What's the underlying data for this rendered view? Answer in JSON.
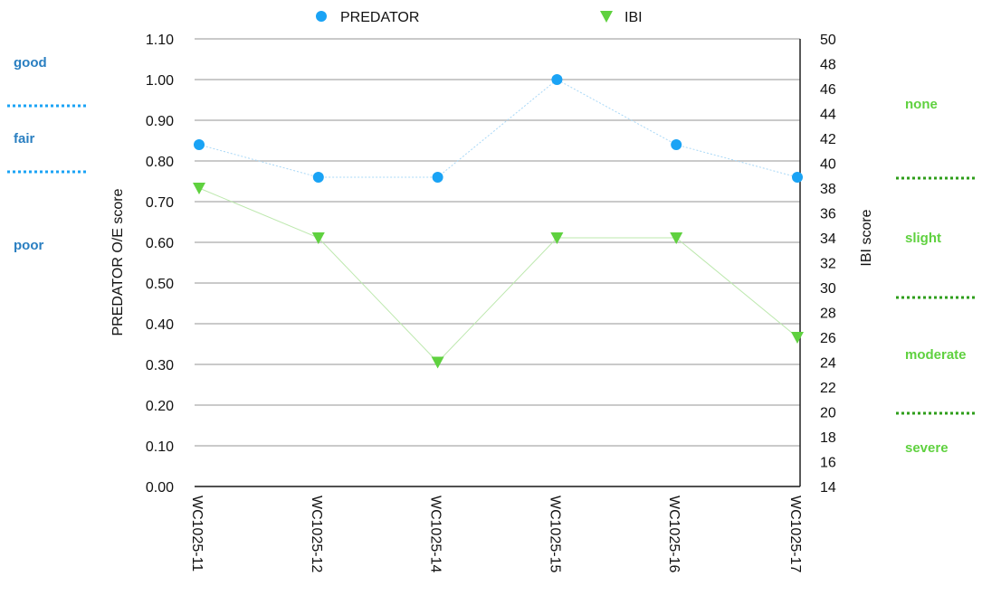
{
  "chart_data": {
    "type": "line",
    "categories": [
      "WC1025-11",
      "WC1025-12",
      "WC1025-14",
      "WC1025-15",
      "WC1025-16",
      "WC1025-17"
    ],
    "series": [
      {
        "name": "PREDATOR",
        "axis": "left",
        "marker": "circle",
        "color": "#1aa3f5",
        "line_color": "#a9d8f7",
        "values": [
          0.84,
          0.76,
          0.76,
          1.0,
          0.84,
          0.76
        ]
      },
      {
        "name": "IBI",
        "axis": "right",
        "marker": "triangle-down",
        "color": "#5fd13f",
        "line_color": "#bde8ae",
        "values": [
          38,
          34,
          24,
          34,
          34,
          26
        ]
      }
    ],
    "ylabel": "PREDATOR O/E score",
    "ylim": [
      0,
      1.1
    ],
    "yticks": [
      "0.00",
      "0.10",
      "0.20",
      "0.30",
      "0.40",
      "0.50",
      "0.60",
      "0.70",
      "0.80",
      "0.90",
      "1.00",
      "1.10"
    ],
    "y2label": "IBI score",
    "y2lim": [
      14,
      50
    ],
    "y2ticks": [
      "14",
      "16",
      "18",
      "20",
      "22",
      "24",
      "26",
      "28",
      "30",
      "32",
      "34",
      "36",
      "38",
      "40",
      "42",
      "44",
      "46",
      "48",
      "50"
    ],
    "grid": true,
    "legend": "top",
    "left_classes": {
      "color": "#2a7fc1",
      "line_color": "#1aa3f5",
      "labels": [
        "good",
        "fair",
        "poor"
      ],
      "boundaries": [
        0.94,
        0.78
      ]
    },
    "right_classes": {
      "color": "#5fd13f",
      "line_color": "#2e9e1a",
      "labels": [
        "none",
        "slight",
        "moderate",
        "severe"
      ],
      "boundaries": [
        39,
        29,
        20
      ]
    }
  }
}
